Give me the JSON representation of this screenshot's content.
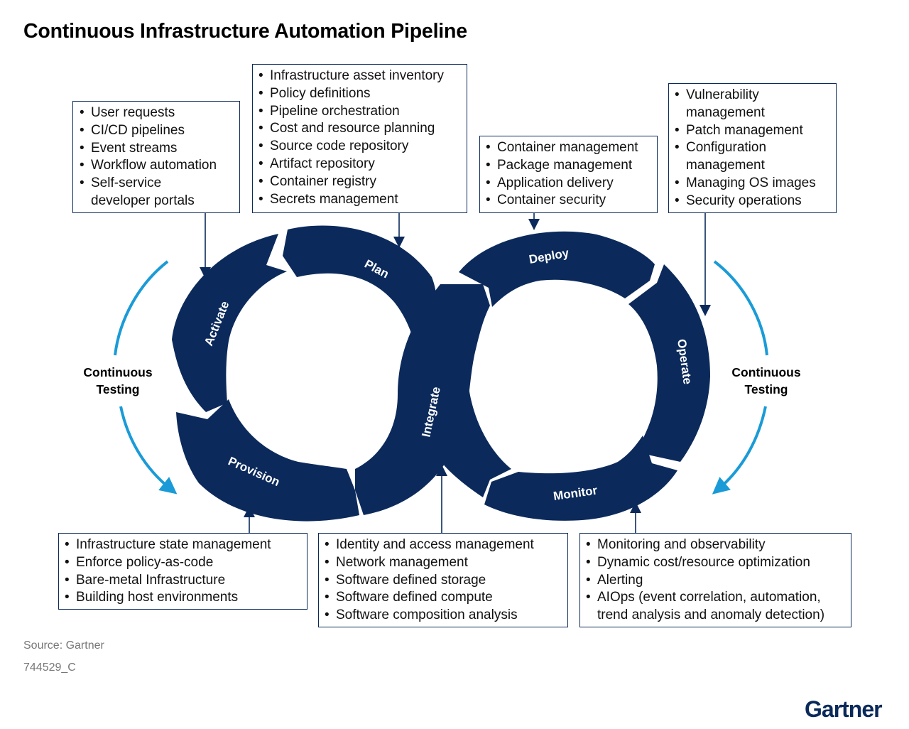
{
  "title": "Continuous Infrastructure Automation Pipeline",
  "stages": {
    "activate": "Activate",
    "plan": "Plan",
    "deploy": "Deploy",
    "operate": "Operate",
    "monitor": "Monitor",
    "integrate": "Integrate",
    "provision": "Provision"
  },
  "continuous_testing": {
    "left": [
      "Continuous",
      "Testing"
    ],
    "right": [
      "Continuous",
      "Testing"
    ]
  },
  "boxes": {
    "activate": [
      "User requests",
      "CI/CD pipelines",
      "Event streams",
      "Workflow automation",
      "Self-service",
      "developer portals"
    ],
    "plan": [
      "Infrastructure asset inventory",
      "Policy definitions",
      "Pipeline orchestration",
      "Cost and resource planning",
      "Source code repository",
      "Artifact repository",
      "Container registry",
      "Secrets management"
    ],
    "deploy": [
      "Container management",
      "Package management",
      "Application delivery",
      "Container security"
    ],
    "operate": [
      "Vulnerability",
      "management",
      "Patch management",
      "Configuration",
      "management",
      "Managing OS images",
      "Security operations"
    ],
    "provision": [
      "Infrastructure state management",
      "Enforce policy-as-code",
      "Bare-metal Infrastructure",
      "Building host environments"
    ],
    "integrate": [
      "Identity and access management",
      "Network management",
      "Software defined storage",
      "Software defined compute",
      "Software composition analysis"
    ],
    "monitor": [
      "Monitoring and observability",
      "Dynamic cost/resource optimization",
      "Alerting",
      "AIOps (event correlation, automation,",
      "trend analysis and anomaly detection)"
    ]
  },
  "source": "Source: Gartner",
  "doc_id": "744529_C",
  "logo": "Gartner",
  "colors": {
    "navy": "#0b2a5b",
    "arrow_blue": "#1a9bd7",
    "text": "#1a1a1a",
    "muted": "#777777"
  }
}
